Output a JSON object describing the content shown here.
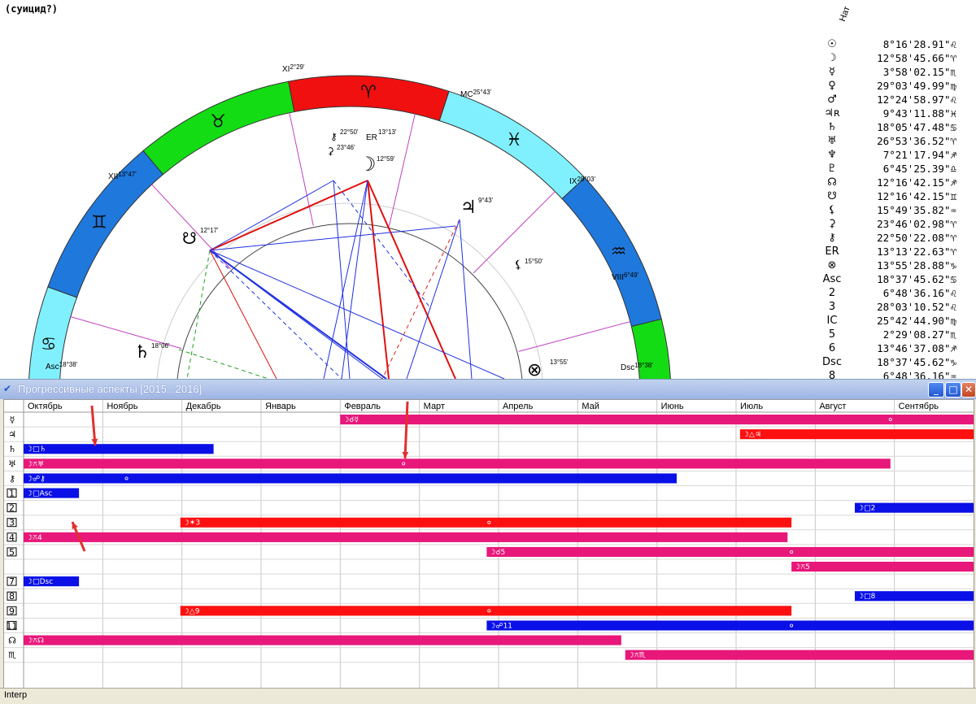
{
  "chart_title": "(суицид?)",
  "nat_label": "Нат",
  "planets": [
    {
      "glyph": "☉",
      "pos": "8°16'28.91\"♌"
    },
    {
      "glyph": "☽",
      "pos": "12°58'45.66\"♈"
    },
    {
      "glyph": "☿",
      "pos": "3°58'02.15\"♏"
    },
    {
      "glyph": "♀",
      "pos": "29°03'49.99\"♍"
    },
    {
      "glyph": "♂",
      "pos": "12°24'58.97\"♌"
    },
    {
      "glyph": "♃ʀ",
      "pos": "9°43'11.88\"♓"
    },
    {
      "glyph": "♄",
      "pos": "18°05'47.48\"♋"
    },
    {
      "glyph": "♅",
      "pos": "26°53'36.52\"♈"
    },
    {
      "glyph": "♆",
      "pos": "7°21'17.94\"♐"
    },
    {
      "glyph": "♇",
      "pos": "6°45'25.39\"♎"
    },
    {
      "glyph": "☊",
      "pos": "12°16'42.15\"♐"
    },
    {
      "glyph": "☋",
      "pos": "12°16'42.15\"♊"
    },
    {
      "glyph": "⚸",
      "pos": "15°49'35.82\"♒"
    },
    {
      "glyph": "⚳",
      "pos": "23°46'02.98\"♈"
    },
    {
      "glyph": "⚷",
      "pos": "22°50'22.08\"♈"
    },
    {
      "glyph": "ER",
      "pos": "13°13'22.63\"♈"
    },
    {
      "glyph": "⊗",
      "pos": "13°55'28.88\"♑"
    },
    {
      "glyph": "Asc",
      "pos": "18°37'45.62\"♋"
    },
    {
      "glyph": "2",
      "pos": "6°48'36.16\"♌"
    },
    {
      "glyph": "3",
      "pos": "28°03'10.52\"♌"
    },
    {
      "glyph": "IC",
      "pos": "25°42'44.90\"♍"
    },
    {
      "glyph": "5",
      "pos": "2°29'08.27\"♏"
    },
    {
      "glyph": "6",
      "pos": "13°46'37.08\"♐"
    },
    {
      "glyph": "Dsc",
      "pos": "18°37'45.62\"♑"
    },
    {
      "glyph": "8",
      "pos": "6°48'36.16\"♒"
    }
  ],
  "wheel_labels": {
    "xi": "XI",
    "xi_deg": "2°29'",
    "mc": "MC",
    "mc_deg": "25°43'",
    "xii": "XII",
    "xii_deg": "13°47'",
    "ix": "IX",
    "ix_deg": "28°03'",
    "viii": "VIII",
    "viii_deg": "6°49'",
    "asc": "Asc",
    "asc_deg": "18°38'",
    "dsc": "Dsc",
    "dsc_deg": "18°38'",
    "moon_deg": "12°59'",
    "jupiter_deg": "9°43'",
    "saturn_deg": "18°06'",
    "node_deg": "12°17'",
    "lilith_deg": "15°50'",
    "fortune_deg": "13°55'",
    "chiron_deg": "22°50'",
    "er_deg": "13°13'",
    "ceres_deg": "23°46'"
  },
  "window": {
    "title": "Прогрессивные аспекты [2015...2016]",
    "status": "Interp",
    "min_glyph": "_",
    "max_glyph": "□",
    "close_glyph": "✕"
  },
  "months": [
    "Октябрь",
    "Ноябрь",
    "Декабрь",
    "Январь",
    "Февраль",
    "Март",
    "Апрель",
    "Май",
    "Июнь",
    "Июль",
    "Август",
    "Сентябрь"
  ],
  "row_labels": [
    "☿",
    "♃",
    "♄",
    "♅",
    "⚷",
    "1",
    "2",
    "3",
    "4",
    "5",
    "",
    "7",
    "8",
    "9",
    "11",
    "☊",
    "♏"
  ],
  "bars": [
    {
      "row": 0,
      "start": 4.0,
      "end": 12.0,
      "color": "#e8177a",
      "label": "☽☌☿",
      "dot": 10.95
    },
    {
      "row": 1,
      "start": 9.05,
      "end": 12.0,
      "color": "#ff1010",
      "label": "☽△♃"
    },
    {
      "row": 2,
      "start": 0.0,
      "end": 2.4,
      "color": "#0a10e6",
      "label": "☽□♄"
    },
    {
      "row": 3,
      "start": 0.0,
      "end": 10.95,
      "color": "#e8177a",
      "label": "☽⚻♅",
      "dot": 4.8
    },
    {
      "row": 4,
      "start": 0.0,
      "end": 8.25,
      "color": "#0a10e6",
      "label": "☽☍⚷",
      "dot": 1.3
    },
    {
      "row": 5,
      "start": 0.0,
      "end": 0.7,
      "color": "#0a10e6",
      "label": "☽□Asc"
    },
    {
      "row": 6,
      "start": 10.5,
      "end": 12.0,
      "color": "#0a10e6",
      "label": "☽□2"
    },
    {
      "row": 7,
      "start": 1.98,
      "end": 9.7,
      "color": "#ff1010",
      "label": "☽✶3",
      "dot": 5.88
    },
    {
      "row": 8,
      "start": 0.0,
      "end": 9.65,
      "color": "#e8177a",
      "label": "☽⚻4"
    },
    {
      "row": 9,
      "start": 5.85,
      "end": 12.0,
      "color": "#e8177a",
      "label": "☽☌5",
      "dot": 9.7
    },
    {
      "row": 10,
      "start": 9.7,
      "end": 12.0,
      "color": "#e8177a",
      "label": "☽⚻5"
    },
    {
      "row": 11,
      "start": 0.0,
      "end": 0.7,
      "color": "#0a10e6",
      "label": "☽□Dsc"
    },
    {
      "row": 12,
      "start": 10.5,
      "end": 12.0,
      "color": "#0a10e6",
      "label": "☽□8"
    },
    {
      "row": 13,
      "start": 1.98,
      "end": 9.7,
      "color": "#ff1010",
      "label": "☽△9",
      "dot": 5.88
    },
    {
      "row": 14,
      "start": 5.85,
      "end": 12.0,
      "color": "#0a10e6",
      "label": "☽☍11",
      "dot": 9.7
    },
    {
      "row": 15,
      "start": 0.0,
      "end": 7.55,
      "color": "#e8177a",
      "label": "☽⚻☊"
    },
    {
      "row": 16,
      "start": 7.6,
      "end": 12.0,
      "color": "#e8177a",
      "label": "☽⚻♏"
    }
  ]
}
